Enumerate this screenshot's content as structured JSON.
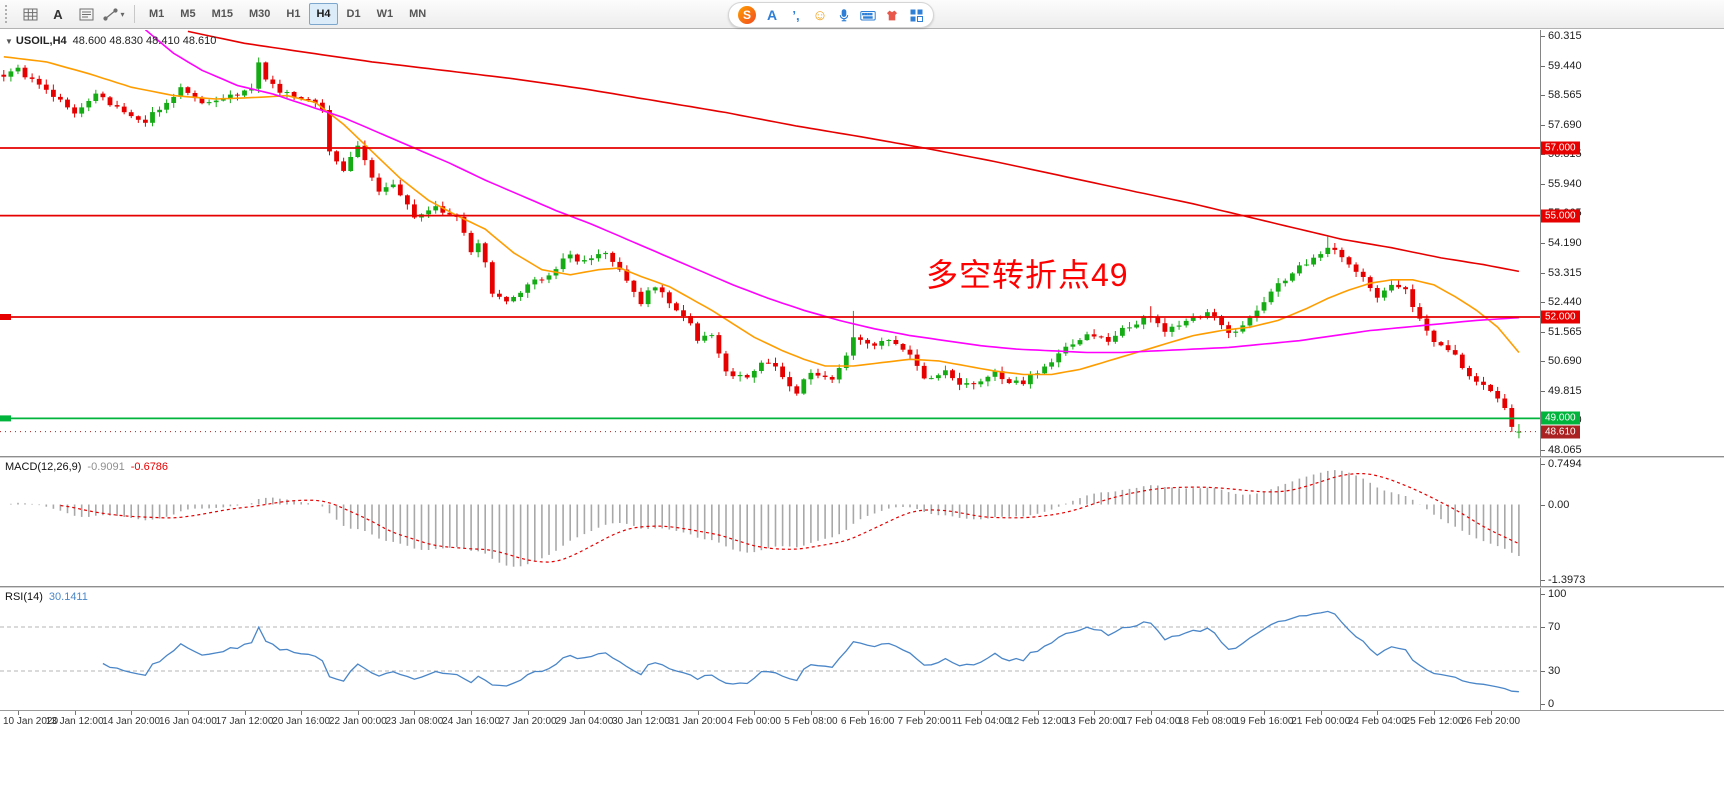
{
  "toolbar": {
    "tool_icons": [
      "chart-grid-icon",
      "label-a-icon",
      "text-frame-icon",
      "draw-tools-icon"
    ],
    "timeframes": {
      "items": [
        "M1",
        "M5",
        "M15",
        "M30",
        "H1",
        "H4",
        "D1",
        "W1",
        "MN"
      ],
      "active": "H4"
    },
    "ime_icons": [
      "sogou-logo-icon",
      "lang-en-icon",
      "punctuation-icon",
      "emoji-icon",
      "mic-icon",
      "keyboard-icon",
      "skin-icon",
      "toolbox-icon"
    ]
  },
  "chart": {
    "header_symbol": "USOIL,H4",
    "header_ohlc": "48.600 48.830 48.410 48.610",
    "annotation": {
      "text": "多空转折点49",
      "color": "#ff0000"
    }
  },
  "macd_panel": {
    "title": "MACD(12,26,9)",
    "value_main": "-0.9091",
    "value_signal": "-0.6786"
  },
  "rsi_panel": {
    "title": "RSI(14)",
    "value": "30.1411"
  },
  "chart_data": {
    "type": "candlestick",
    "symbol": "USOIL",
    "timeframe": "H4",
    "visible_bars": 215,
    "current_bar": {
      "open": 48.6,
      "high": 48.83,
      "low": 48.41,
      "close": 48.61
    },
    "candle_up_color": "#15ab15",
    "candle_down_color": "#e60000",
    "price_axis_ticks": [
      "60.315",
      "59.440",
      "58.565",
      "57.690",
      "56.815",
      "55.940",
      "55.065",
      "54.190",
      "53.315",
      "52.440",
      "51.565",
      "50.690",
      "49.815",
      "48.940",
      "48.065"
    ],
    "close_path": [
      [
        0,
        59.15
      ],
      [
        2,
        59.3
      ],
      [
        4,
        59.0
      ],
      [
        6,
        58.8
      ],
      [
        8,
        58.35
      ],
      [
        10,
        57.95
      ],
      [
        13,
        58.55
      ],
      [
        16,
        58.2
      ],
      [
        18,
        57.95
      ],
      [
        20,
        57.75
      ],
      [
        22,
        58.2
      ],
      [
        25,
        58.75
      ],
      [
        27,
        58.45
      ],
      [
        29,
        58.3
      ],
      [
        31,
        58.45
      ],
      [
        33,
        58.6
      ],
      [
        35,
        58.7
      ],
      [
        36,
        59.45
      ],
      [
        37,
        59.1
      ],
      [
        38,
        58.85
      ],
      [
        40,
        58.6
      ],
      [
        43,
        58.35
      ],
      [
        45,
        58.2
      ],
      [
        46,
        56.9
      ],
      [
        48,
        56.4
      ],
      [
        50,
        57.0
      ],
      [
        51,
        56.6
      ],
      [
        53,
        55.7
      ],
      [
        55,
        56.0
      ],
      [
        57,
        55.3
      ],
      [
        58,
        54.9
      ],
      [
        60,
        55.15
      ],
      [
        61,
        55.25
      ],
      [
        63,
        55.1
      ],
      [
        64,
        54.95
      ],
      [
        65,
        54.4
      ],
      [
        66,
        53.95
      ],
      [
        67,
        54.25
      ],
      [
        68,
        53.6
      ],
      [
        69,
        52.75
      ],
      [
        71,
        52.5
      ],
      [
        74,
        52.95
      ],
      [
        77,
        53.3
      ],
      [
        80,
        53.85
      ],
      [
        82,
        53.6
      ],
      [
        85,
        53.95
      ],
      [
        87,
        53.35
      ],
      [
        89,
        52.7
      ],
      [
        90,
        52.45
      ],
      [
        92,
        52.95
      ],
      [
        95,
        52.15
      ],
      [
        97,
        51.8
      ],
      [
        98,
        51.25
      ],
      [
        100,
        51.5
      ],
      [
        102,
        50.45
      ],
      [
        104,
        50.2
      ],
      [
        105,
        50.15
      ],
      [
        107,
        50.65
      ],
      [
        109,
        50.45
      ],
      [
        110,
        50.3
      ],
      [
        112,
        49.75
      ],
      [
        114,
        50.4
      ],
      [
        117,
        50.2
      ],
      [
        119,
        50.9
      ],
      [
        120,
        51.45
      ],
      [
        122,
        51.15
      ],
      [
        125,
        51.35
      ],
      [
        128,
        50.85
      ],
      [
        130,
        50.15
      ],
      [
        133,
        50.4
      ],
      [
        135,
        50.0
      ],
      [
        137,
        50.05
      ],
      [
        140,
        50.35
      ],
      [
        142,
        50.1
      ],
      [
        144,
        50.1
      ],
      [
        147,
        50.55
      ],
      [
        150,
        51.05
      ],
      [
        153,
        51.55
      ],
      [
        156,
        51.3
      ],
      [
        159,
        51.75
      ],
      [
        162,
        52.05
      ],
      [
        164,
        51.65
      ],
      [
        167,
        51.9
      ],
      [
        170,
        52.1
      ],
      [
        172,
        51.8
      ],
      [
        173,
        51.45
      ],
      [
        176,
        52.0
      ],
      [
        179,
        52.75
      ],
      [
        182,
        53.3
      ],
      [
        185,
        53.75
      ],
      [
        187,
        54.1
      ],
      [
        189,
        53.85
      ],
      [
        192,
        53.15
      ],
      [
        194,
        52.55
      ],
      [
        196,
        53.0
      ],
      [
        198,
        52.85
      ],
      [
        200,
        51.9
      ],
      [
        202,
        51.3
      ],
      [
        204,
        51.05
      ],
      [
        206,
        50.55
      ],
      [
        208,
        50.0
      ],
      [
        210,
        49.85
      ],
      [
        212,
        49.3
      ],
      [
        213,
        48.75
      ],
      [
        214,
        48.61
      ]
    ],
    "wick_overrides": [
      [
        36,
        59.68
      ],
      [
        120,
        52.18
      ],
      [
        162,
        52.32
      ],
      [
        187,
        54.38
      ]
    ],
    "noise_amp": 0.09,
    "horizontal_lines": [
      {
        "price": 57.0,
        "label": "57.000",
        "color": "#e60000",
        "left_tag": false
      },
      {
        "price": 55.0,
        "label": "55.000",
        "color": "#e60000",
        "left_tag": false
      },
      {
        "price": 52.0,
        "label": "52.000",
        "color": "#e60000",
        "left_tag": true
      },
      {
        "price": 49.0,
        "label": "49.000",
        "color": "#00b43c",
        "left_tag": true
      }
    ],
    "bid_line": {
      "price": 48.61,
      "label": "48.610",
      "color": "#aa2222"
    },
    "ma_lines": [
      {
        "name": "ma-fast",
        "color": "#ff9d00",
        "points": [
          [
            0,
            59.7
          ],
          [
            6,
            59.55
          ],
          [
            12,
            59.2
          ],
          [
            18,
            58.8
          ],
          [
            24,
            58.55
          ],
          [
            30,
            58.45
          ],
          [
            36,
            58.5
          ],
          [
            40,
            58.55
          ],
          [
            44,
            58.35
          ],
          [
            48,
            57.7
          ],
          [
            52,
            56.9
          ],
          [
            56,
            56.1
          ],
          [
            60,
            55.45
          ],
          [
            64,
            55.0
          ],
          [
            68,
            54.6
          ],
          [
            72,
            53.9
          ],
          [
            76,
            53.4
          ],
          [
            80,
            53.25
          ],
          [
            84,
            53.4
          ],
          [
            87,
            53.45
          ],
          [
            90,
            53.2
          ],
          [
            94,
            52.9
          ],
          [
            97,
            52.55
          ],
          [
            100,
            52.2
          ],
          [
            103,
            51.8
          ],
          [
            106,
            51.4
          ],
          [
            110,
            51.0
          ],
          [
            113,
            50.75
          ],
          [
            116,
            50.55
          ],
          [
            120,
            50.55
          ],
          [
            124,
            50.65
          ],
          [
            128,
            50.75
          ],
          [
            132,
            50.7
          ],
          [
            136,
            50.55
          ],
          [
            140,
            50.4
          ],
          [
            144,
            50.3
          ],
          [
            148,
            50.3
          ],
          [
            152,
            50.45
          ],
          [
            156,
            50.7
          ],
          [
            160,
            50.95
          ],
          [
            164,
            51.2
          ],
          [
            168,
            51.45
          ],
          [
            172,
            51.6
          ],
          [
            176,
            51.7
          ],
          [
            180,
            51.9
          ],
          [
            184,
            52.25
          ],
          [
            187,
            52.55
          ],
          [
            190,
            52.8
          ],
          [
            193,
            53.0
          ],
          [
            196,
            53.1
          ],
          [
            199,
            53.1
          ],
          [
            202,
            52.95
          ],
          [
            205,
            52.6
          ],
          [
            208,
            52.2
          ],
          [
            211,
            51.7
          ],
          [
            214,
            50.95
          ]
        ]
      },
      {
        "name": "ma-medium",
        "color": "#ff00ff",
        "points": [
          [
            20,
            60.5
          ],
          [
            24,
            59.8
          ],
          [
            28,
            59.3
          ],
          [
            33,
            58.85
          ],
          [
            38,
            58.6
          ],
          [
            43,
            58.25
          ],
          [
            48,
            57.9
          ],
          [
            53,
            57.45
          ],
          [
            58,
            57.0
          ],
          [
            63,
            56.55
          ],
          [
            68,
            56.05
          ],
          [
            73,
            55.6
          ],
          [
            78,
            55.15
          ],
          [
            83,
            54.75
          ],
          [
            88,
            54.3
          ],
          [
            93,
            53.85
          ],
          [
            98,
            53.4
          ],
          [
            103,
            52.95
          ],
          [
            108,
            52.55
          ],
          [
            113,
            52.2
          ],
          [
            118,
            51.9
          ],
          [
            123,
            51.65
          ],
          [
            128,
            51.45
          ],
          [
            133,
            51.3
          ],
          [
            138,
            51.15
          ],
          [
            143,
            51.05
          ],
          [
            148,
            51.0
          ],
          [
            153,
            50.95
          ],
          [
            158,
            50.95
          ],
          [
            163,
            51.0
          ],
          [
            168,
            51.05
          ],
          [
            173,
            51.1
          ],
          [
            178,
            51.2
          ],
          [
            183,
            51.3
          ],
          [
            188,
            51.45
          ],
          [
            193,
            51.6
          ],
          [
            198,
            51.7
          ],
          [
            203,
            51.8
          ],
          [
            208,
            51.9
          ],
          [
            214,
            51.98
          ]
        ]
      },
      {
        "name": "ma-slow",
        "color": "#e60000",
        "points": [
          [
            26,
            60.45
          ],
          [
            34,
            60.1
          ],
          [
            42,
            59.85
          ],
          [
            52,
            59.55
          ],
          [
            62,
            59.3
          ],
          [
            72,
            59.05
          ],
          [
            82,
            58.75
          ],
          [
            92,
            58.4
          ],
          [
            102,
            58.05
          ],
          [
            112,
            57.65
          ],
          [
            122,
            57.3
          ],
          [
            130,
            57.0
          ],
          [
            140,
            56.6
          ],
          [
            150,
            56.15
          ],
          [
            160,
            55.7
          ],
          [
            168,
            55.35
          ],
          [
            175,
            55.0
          ],
          [
            182,
            54.65
          ],
          [
            189,
            54.3
          ],
          [
            196,
            54.05
          ],
          [
            203,
            53.75
          ],
          [
            209,
            53.55
          ],
          [
            214,
            53.35
          ]
        ]
      }
    ],
    "macd": {
      "fast": 12,
      "slow": 26,
      "signal": 9,
      "scale": {
        "max": 0.7494,
        "min": -1.3973
      },
      "scale_labels": [
        "0.7494",
        "0.00",
        "-1.3973"
      ],
      "histogram_color": "#a8a8a8",
      "signal_color": "#e60000"
    },
    "rsi": {
      "period": 14,
      "current": 30.1411,
      "color": "#4a86c8",
      "levels": [
        70,
        30
      ],
      "scale_labels": [
        "100",
        "70",
        "30",
        "0"
      ]
    },
    "time_labels": [
      "10 Jan 2020",
      "13 Jan 12:00",
      "14 Jan 20:00",
      "16 Jan 04:00",
      "17 Jan 12:00",
      "20 Jan 16:00",
      "22 Jan 00:00",
      "23 Jan 08:00",
      "24 Jan 16:00",
      "27 Jan 20:00",
      "29 Jan 04:00",
      "30 Jan 12:00",
      "31 Jan 20:00",
      "4 Feb 00:00",
      "5 Feb 08:00",
      "6 Feb 16:00",
      "7 Feb 20:00",
      "11 Feb 04:00",
      "12 Feb 12:00",
      "13 Feb 20:00",
      "17 Feb 04:00",
      "18 Feb 08:00",
      "19 Feb 16:00",
      "21 Feb 00:00",
      "24 Feb 04:00",
      "25 Feb 12:00",
      "26 Feb 20:00"
    ],
    "time_label_start": 2,
    "time_label_step": 8
  }
}
